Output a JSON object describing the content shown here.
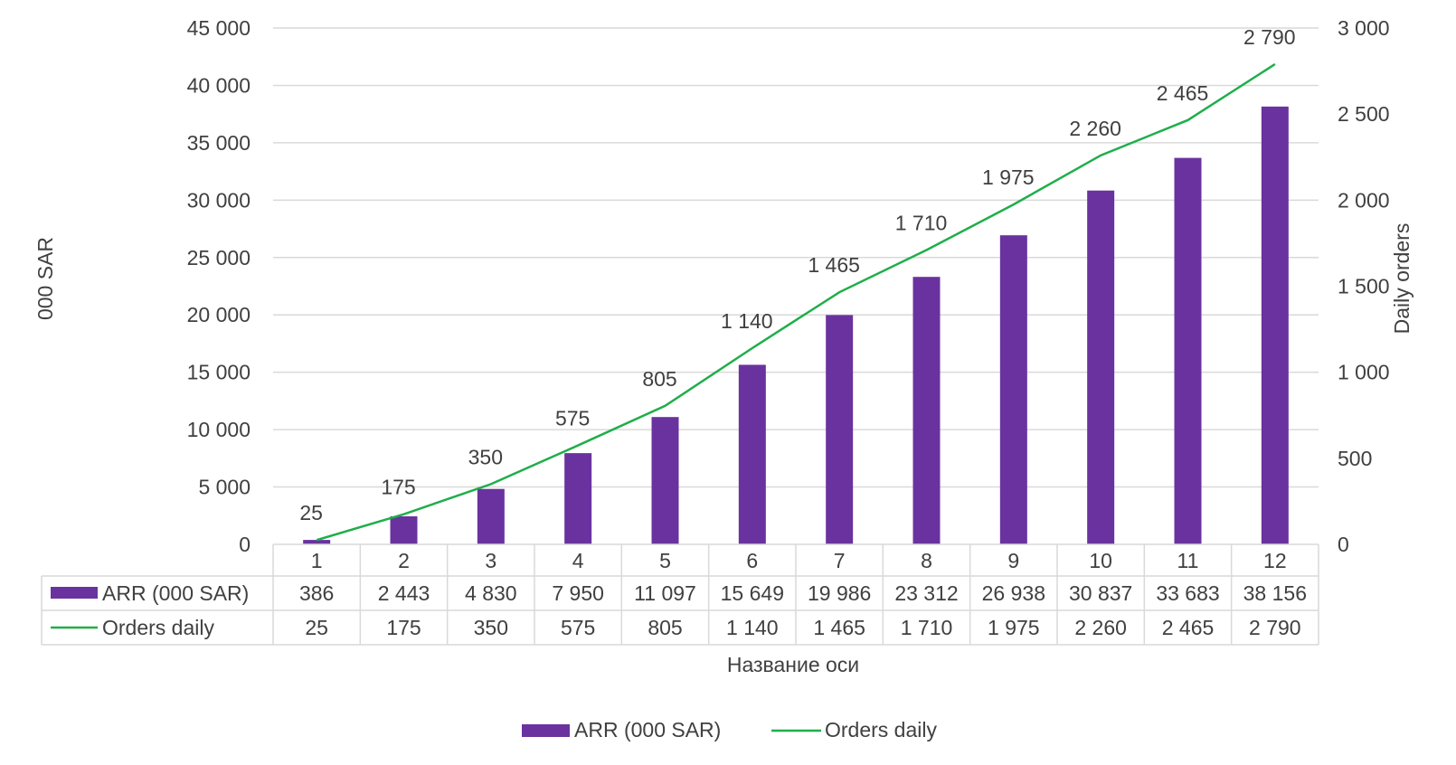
{
  "chart_data": {
    "type": "bar",
    "categories": [
      "1",
      "2",
      "3",
      "4",
      "5",
      "6",
      "7",
      "8",
      "9",
      "10",
      "11",
      "12"
    ],
    "series": [
      {
        "name": "ARR (000 SAR)",
        "type": "bar",
        "axis": "left",
        "color": "#6a329f",
        "values": [
          386,
          2443,
          4830,
          7950,
          11097,
          15649,
          19986,
          23312,
          26938,
          30837,
          33683,
          38156
        ],
        "table_labels": [
          "386",
          "2 443",
          "4 830",
          "7 950",
          "11 097",
          "15 649",
          "19 986",
          "23 312",
          "26 938",
          "30 837",
          "33 683",
          "38 156"
        ]
      },
      {
        "name": "Orders daily",
        "type": "line",
        "axis": "right",
        "color": "#1fae4a",
        "values": [
          25,
          175,
          350,
          575,
          805,
          1140,
          1465,
          1710,
          1975,
          2260,
          2465,
          2790
        ],
        "table_labels": [
          "25",
          "175",
          "350",
          "575",
          "805",
          "1 140",
          "1 465",
          "1 710",
          "1 975",
          "2 260",
          "2 465",
          "2 790"
        ],
        "data_labels": [
          "25",
          "175",
          "350",
          "575",
          "805",
          "1 140",
          "1 465",
          "1 710",
          "1 975",
          "2 260",
          "2 465",
          "2 790"
        ]
      }
    ],
    "xlabel": "Название оси",
    "ylabel": "000 SAR",
    "y2label": "Daily orders",
    "ylim": [
      0,
      45000
    ],
    "y2lim": [
      0,
      3000
    ],
    "yticks": [
      0,
      5000,
      10000,
      15000,
      20000,
      25000,
      30000,
      35000,
      40000,
      45000
    ],
    "ytick_labels": [
      "0",
      "5 000",
      "10 000",
      "15 000",
      "20 000",
      "25 000",
      "30 000",
      "35 000",
      "40 000",
      "45 000"
    ],
    "y2ticks": [
      0,
      500,
      1000,
      1500,
      2000,
      2500,
      3000
    ],
    "y2tick_labels": [
      "0",
      "500",
      "1 000",
      "1 500",
      "2 000",
      "2 500",
      "3 000"
    ],
    "grid": true,
    "legend_position": "bottom",
    "data_table": true,
    "colors": {
      "bar": "#6a329f",
      "line": "#1fae4a",
      "grid": "#d9d9d9",
      "text": "#404040"
    }
  }
}
